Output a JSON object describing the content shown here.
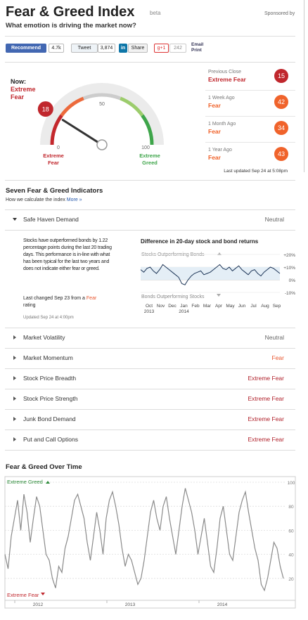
{
  "header": {
    "title": "Fear & Greed Index",
    "badge": "beta",
    "sponsored": "Sponsored by",
    "subtitle": "What emotion is driving the market now?"
  },
  "social": {
    "recommend": "Recommend",
    "recommend_count": "4.7k",
    "tweet": "Tweet",
    "tweet_count": "3,874",
    "share": "Share",
    "gplus": "g+1",
    "gplus_count": "242",
    "email": "Email",
    "print": "Print"
  },
  "gauge": {
    "now_label": "Now:",
    "now_rating": "Extreme Fear",
    "value": 18,
    "min": 0,
    "mid": 50,
    "max": 100,
    "min_label": "Extreme Fear",
    "max_label": "Extreme Greed"
  },
  "history": [
    {
      "label": "Previous Close",
      "rating": "Extreme Fear",
      "value": 15,
      "color": "#c0272d"
    },
    {
      "label": "1 Week Ago",
      "rating": "Fear",
      "value": 42,
      "color": "#f0632b"
    },
    {
      "label": "1 Month Ago",
      "rating": "Fear",
      "value": 34,
      "color": "#f0632b"
    },
    {
      "label": "1 Year Ago",
      "rating": "Fear",
      "value": 43,
      "color": "#f0632b"
    }
  ],
  "last_updated": "Last updated Sep 24 at 5:08pm",
  "indicators": {
    "title": "Seven Fear & Greed Indicators",
    "how": "How we calculate the index",
    "more": "More »",
    "rows": [
      {
        "name": "Safe Haven Demand",
        "rating": "Neutral",
        "color": "#666666"
      },
      {
        "name": "Market Volatility",
        "rating": "Neutral",
        "color": "#666666"
      },
      {
        "name": "Market Momentum",
        "rating": "Fear",
        "color": "#e8552e"
      },
      {
        "name": "Stock Price Breadth",
        "rating": "Extreme Fear",
        "color": "#b0202a"
      },
      {
        "name": "Stock Price Strength",
        "rating": "Extreme Fear",
        "color": "#b0202a"
      },
      {
        "name": "Junk Bond Demand",
        "rating": "Extreme Fear",
        "color": "#b0202a"
      },
      {
        "name": "Put and Call Options",
        "rating": "Extreme Fear",
        "color": "#b0202a"
      }
    ],
    "detail": {
      "text": "Stocks have outperformed bonds by 1.22 percentage points during the last 20 trading days. This performance is in-line with what has been typical for the last two years and does not indicate either fear or greed.",
      "changed": "Last changed Sep 23 from a",
      "changed_rating": "Fear",
      "changed_suffix": "rating",
      "updated": "Updated Sep 24 at 4:00pm",
      "chart": {
        "title": "Difference in 20-day stock and bond returns",
        "top_label": "Stocks Outperforming Bonds",
        "bottom_label": "Bonds Outperforming Stocks",
        "ylim": [
          -10,
          20
        ],
        "yticks": [
          {
            "value": 20,
            "label": "+20%"
          },
          {
            "value": 10,
            "label": "+10%"
          },
          {
            "value": 0,
            "label": "0%"
          },
          {
            "value": -10,
            "label": "-10%"
          }
        ],
        "months": [
          "Oct",
          "Nov",
          "Dec",
          "Jan",
          "Feb",
          "Mar",
          "Apr",
          "May",
          "Jun",
          "Jul",
          "Aug",
          "Sep"
        ],
        "years": [
          "2013",
          "2014"
        ],
        "values": [
          8,
          6,
          9,
          10,
          7,
          5,
          8,
          12,
          10,
          8,
          6,
          4,
          2,
          -3,
          -4,
          0,
          3,
          5,
          6,
          7,
          4,
          5,
          6,
          8,
          10,
          12,
          9,
          8,
          10,
          7,
          9,
          11,
          8,
          6,
          4,
          7,
          8,
          5,
          3,
          6,
          8,
          10,
          9,
          7,
          5
        ]
      }
    }
  },
  "over_time": {
    "title": "Fear & Greed Over Time",
    "top_label": "Extreme Greed",
    "bottom_label": "Extreme Fear",
    "ylim": [
      0,
      100
    ],
    "yticks": [
      100,
      80,
      60,
      40,
      20
    ],
    "years": [
      "2012",
      "2013",
      "2014"
    ],
    "values": [
      40,
      28,
      55,
      70,
      85,
      60,
      90,
      75,
      50,
      70,
      88,
      80,
      60,
      40,
      35,
      20,
      12,
      30,
      25,
      45,
      55,
      70,
      85,
      90,
      80,
      70,
      50,
      35,
      55,
      75,
      60,
      40,
      70,
      85,
      92,
      80,
      65,
      45,
      30,
      40,
      35,
      25,
      15,
      20,
      35,
      55,
      75,
      85,
      70,
      60,
      80,
      88,
      70,
      55,
      40,
      60,
      80,
      95,
      85,
      75,
      60,
      40,
      55,
      70,
      50,
      30,
      25,
      45,
      70,
      80,
      60,
      40,
      35,
      55,
      75,
      85,
      92,
      75,
      60,
      45,
      35,
      15,
      10,
      20,
      35,
      50,
      45,
      30,
      20
    ]
  }
}
